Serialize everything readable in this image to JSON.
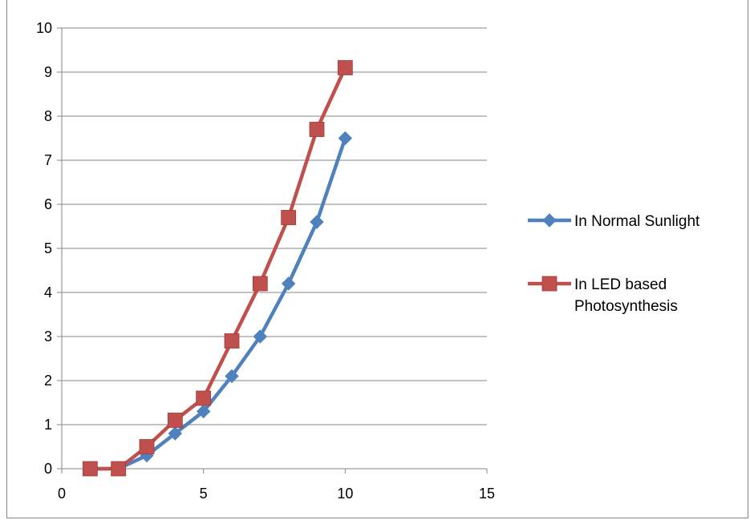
{
  "chart_data": {
    "type": "line",
    "title": "",
    "xlabel": "",
    "ylabel": "",
    "xlim": [
      0,
      15
    ],
    "ylim": [
      0,
      10
    ],
    "x_ticks": [
      "0",
      "5",
      "10",
      "15"
    ],
    "y_ticks": [
      "0",
      "1",
      "2",
      "3",
      "4",
      "5",
      "6",
      "7",
      "8",
      "9",
      "10"
    ],
    "grid": "horizontal major gridlines",
    "legend_position": "right",
    "series": [
      {
        "name": "In Normal Sunlight",
        "color": "#4F81BD",
        "marker": "diamond",
        "x": [
          1,
          2,
          3,
          4,
          5,
          6,
          7,
          8,
          9,
          10
        ],
        "y": [
          0,
          0,
          0.3,
          0.8,
          1.3,
          2.1,
          3.0,
          4.2,
          5.6,
          7.5
        ]
      },
      {
        "name": "In LED based Photosynthesis",
        "legend_lines": [
          "In LED based",
          "Photosynthesis"
        ],
        "color": "#C0504D",
        "marker": "square",
        "x": [
          1,
          2,
          3,
          4,
          5,
          6,
          7,
          8,
          9,
          10
        ],
        "y": [
          0,
          0,
          0.5,
          1.1,
          1.6,
          2.9,
          4.2,
          5.7,
          7.7,
          9.1
        ]
      }
    ]
  }
}
